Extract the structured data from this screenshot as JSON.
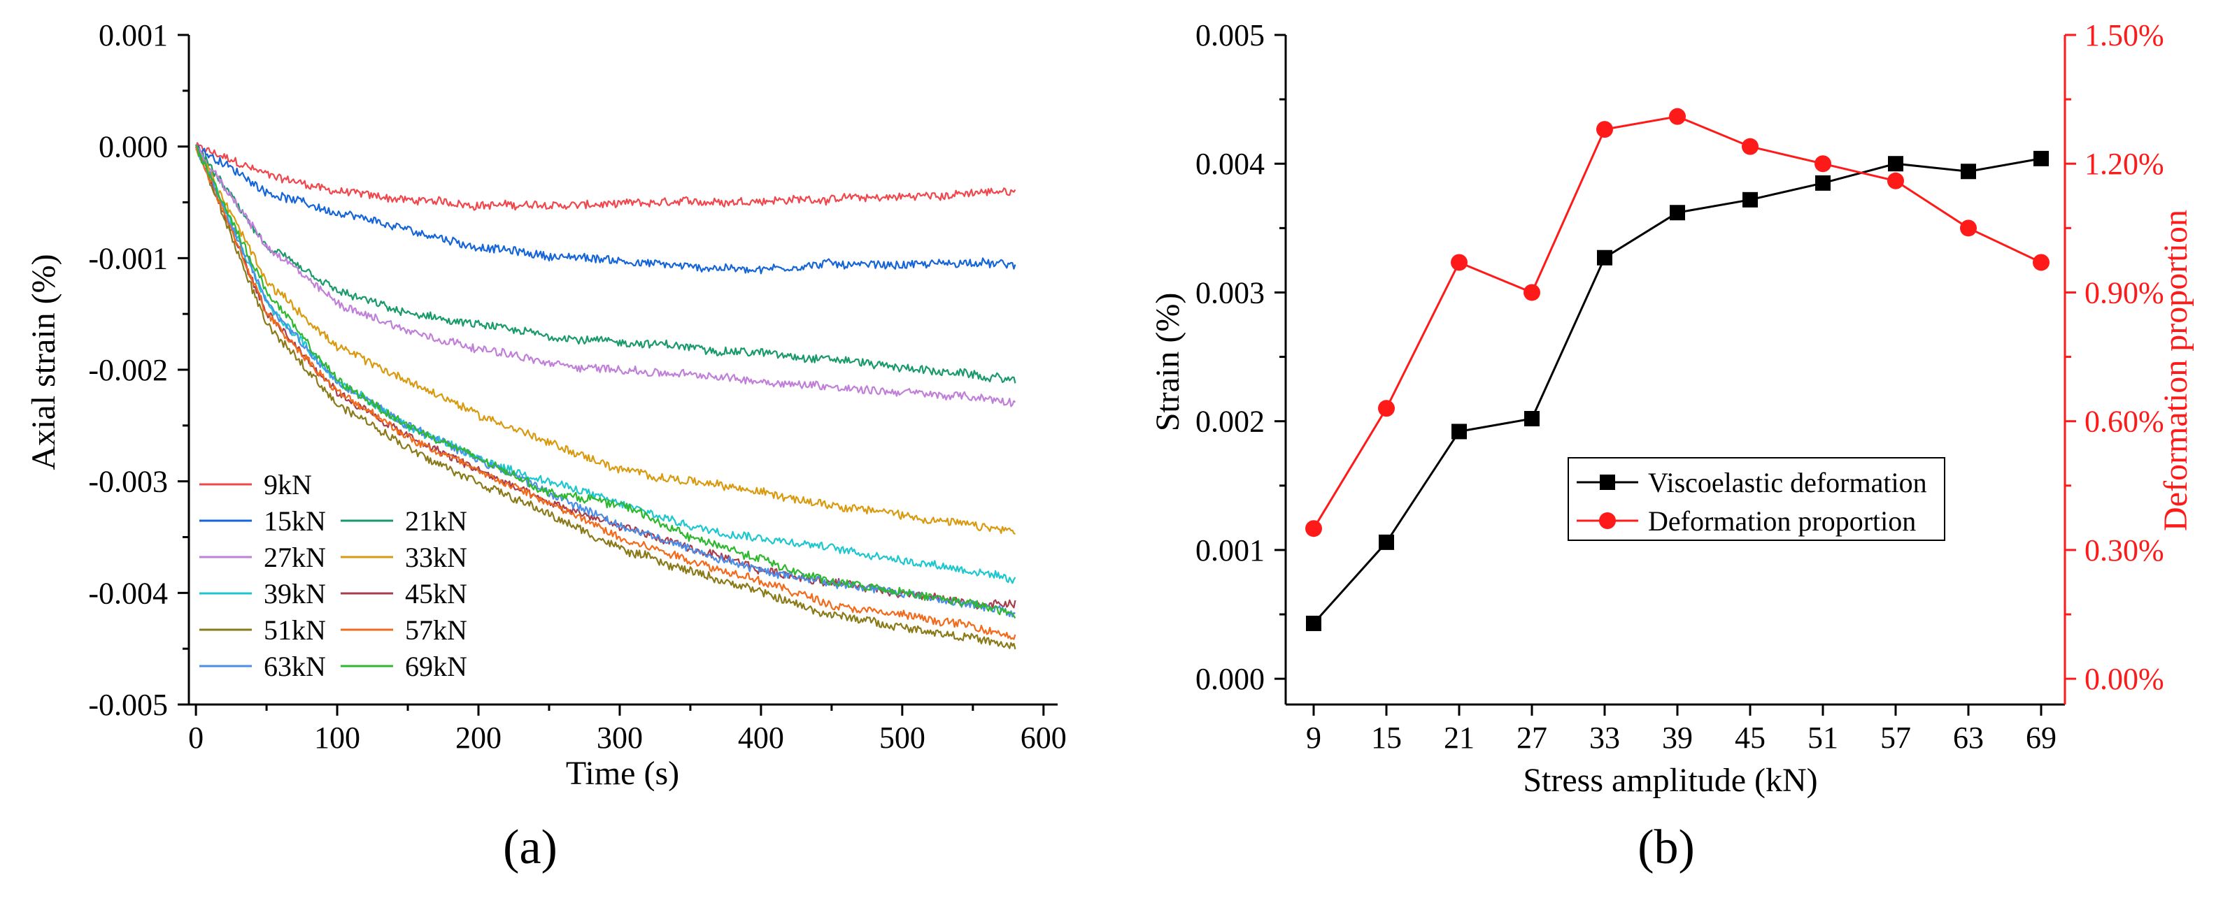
{
  "chart_data": [
    {
      "id": "a",
      "type": "line",
      "panel_label": "(a)",
      "xlabel": "Time (s)",
      "ylabel": "Axial strain (%)",
      "xlim": [
        -5,
        610
      ],
      "ylim": [
        -0.005,
        0.001
      ],
      "x_ticks": [
        0,
        100,
        200,
        300,
        400,
        500,
        600
      ],
      "x_tick_labels": [
        "0",
        "100",
        "200",
        "300",
        "400",
        "500",
        "600"
      ],
      "y_ticks": [
        0.001,
        0.0,
        -0.001,
        -0.002,
        -0.003,
        -0.004,
        -0.005
      ],
      "y_tick_labels": [
        "0.001",
        "0.000",
        "-0.001",
        "-0.002",
        "-0.003",
        "-0.004",
        "-0.005"
      ],
      "legend_position": "bottom-left",
      "x_range": [
        0,
        580
      ],
      "series": [
        {
          "name": "9kN",
          "color": "#f0474d",
          "x": [
            0,
            50,
            100,
            150,
            200,
            250,
            300,
            350,
            400,
            450,
            500,
            550,
            580
          ],
          "y": [
            0.0,
            -0.00025,
            -0.0004,
            -0.00048,
            -0.00052,
            -0.00053,
            -0.00052,
            -0.0005,
            -0.00048,
            -0.00047,
            -0.00045,
            -0.00042,
            -0.0004
          ]
        },
        {
          "name": "15kN",
          "color": "#1565d8",
          "x": [
            0,
            50,
            100,
            150,
            200,
            250,
            300,
            350,
            400,
            450,
            500,
            550,
            580
          ],
          "y": [
            0.0,
            -0.0004,
            -0.0006,
            -0.00075,
            -0.0009,
            -0.00098,
            -0.00102,
            -0.00108,
            -0.0011,
            -0.00105,
            -0.00106,
            -0.00104,
            -0.00107
          ]
        },
        {
          "name": "21kN",
          "color": "#1a9a6a",
          "x": [
            0,
            50,
            100,
            150,
            200,
            250,
            300,
            350,
            400,
            450,
            500,
            550,
            580
          ],
          "y": [
            0.0,
            -0.0009,
            -0.0013,
            -0.0015,
            -0.0016,
            -0.0017,
            -0.00175,
            -0.0018,
            -0.00185,
            -0.0019,
            -0.00198,
            -0.00205,
            -0.0021
          ]
        },
        {
          "name": "27kN",
          "color": "#c07fd8",
          "x": [
            0,
            50,
            100,
            150,
            200,
            250,
            300,
            350,
            400,
            450,
            500,
            550,
            580
          ],
          "y": [
            0.0,
            -0.0009,
            -0.0014,
            -0.00165,
            -0.0018,
            -0.00195,
            -0.002,
            -0.00205,
            -0.0021,
            -0.00215,
            -0.0022,
            -0.00225,
            -0.0023
          ]
        },
        {
          "name": "33kN",
          "color": "#d99a10",
          "x": [
            0,
            50,
            100,
            150,
            200,
            250,
            300,
            350,
            400,
            450,
            500,
            550,
            580
          ],
          "y": [
            0.0,
            -0.0012,
            -0.0018,
            -0.0021,
            -0.0024,
            -0.00265,
            -0.0029,
            -0.003,
            -0.0031,
            -0.0032,
            -0.0033,
            -0.0034,
            -0.00345
          ]
        },
        {
          "name": "39kN",
          "color": "#1ec7d0",
          "x": [
            0,
            50,
            100,
            150,
            200,
            250,
            300,
            350,
            400,
            450,
            500,
            550,
            580
          ],
          "y": [
            0.0,
            -0.0014,
            -0.0021,
            -0.0025,
            -0.0028,
            -0.003,
            -0.0032,
            -0.0034,
            -0.0035,
            -0.0036,
            -0.0037,
            -0.0038,
            -0.0039
          ]
        },
        {
          "name": "45kN",
          "color": "#a83c4c",
          "x": [
            0,
            50,
            100,
            150,
            200,
            250,
            300,
            350,
            400,
            450,
            500,
            550,
            580
          ],
          "y": [
            0.0,
            -0.0015,
            -0.0022,
            -0.0026,
            -0.0029,
            -0.0032,
            -0.0034,
            -0.0036,
            -0.0038,
            -0.0039,
            -0.004,
            -0.0041,
            -0.0041
          ]
        },
        {
          "name": "51kN",
          "color": "#8a7a1a",
          "x": [
            0,
            50,
            100,
            150,
            200,
            250,
            300,
            350,
            400,
            450,
            500,
            550,
            580
          ],
          "y": [
            0.0,
            -0.0016,
            -0.0023,
            -0.0027,
            -0.003,
            -0.0033,
            -0.0036,
            -0.0038,
            -0.004,
            -0.0042,
            -0.0043,
            -0.0044,
            -0.0045
          ]
        },
        {
          "name": "57kN",
          "color": "#f26a1c",
          "x": [
            0,
            50,
            100,
            150,
            200,
            250,
            300,
            350,
            400,
            450,
            500,
            550,
            580
          ],
          "y": [
            0.0,
            -0.0015,
            -0.0022,
            -0.0026,
            -0.0029,
            -0.0032,
            -0.0035,
            -0.0037,
            -0.0039,
            -0.0041,
            -0.0042,
            -0.0043,
            -0.0044
          ]
        },
        {
          "name": "63kN",
          "color": "#4a8ee8",
          "x": [
            0,
            50,
            100,
            150,
            200,
            250,
            300,
            350,
            400,
            450,
            500,
            550,
            580
          ],
          "y": [
            0.0,
            -0.0014,
            -0.0021,
            -0.0025,
            -0.0028,
            -0.0031,
            -0.0034,
            -0.0036,
            -0.0038,
            -0.0039,
            -0.004,
            -0.0041,
            -0.0042
          ]
        },
        {
          "name": "69kN",
          "color": "#2fb82f",
          "x": [
            0,
            50,
            100,
            150,
            200,
            250,
            300,
            350,
            400,
            450,
            500,
            550,
            580
          ],
          "y": [
            0.0,
            -0.0013,
            -0.0021,
            -0.0025,
            -0.0028,
            -0.0031,
            -0.0032,
            -0.0035,
            -0.0037,
            -0.0039,
            -0.004,
            -0.0041,
            -0.0042
          ]
        }
      ]
    },
    {
      "id": "b",
      "type": "line",
      "panel_label": "(b)",
      "xlabel": "Stress amplitude (kN)",
      "ylabel": "Strain (%)",
      "ylabel_right": "Deformation proportion",
      "categories": [
        "9",
        "15",
        "21",
        "27",
        "33",
        "39",
        "45",
        "51",
        "57",
        "63",
        "69"
      ],
      "ylim": [
        -0.0002,
        0.005
      ],
      "ylim_right": [
        -0.0006,
        0.015
      ],
      "y_ticks": [
        0.0,
        0.001,
        0.002,
        0.003,
        0.004,
        0.005
      ],
      "y_tick_labels": [
        "0.000",
        "0.001",
        "0.002",
        "0.003",
        "0.004",
        "0.005"
      ],
      "y_right_ticks": [
        0.0,
        0.003,
        0.006,
        0.009,
        0.012,
        0.015
      ],
      "y_right_tick_labels": [
        "0.00%",
        "0.30%",
        "0.60%",
        "0.90%",
        "1.20%",
        "1.50%"
      ],
      "legend_position": "center",
      "right_axis_color": "#ff1a1a",
      "series": [
        {
          "name": "Viscoelastic deformation",
          "axis": "left",
          "marker": "square",
          "color": "#000000",
          "values": [
            0.00043,
            0.00106,
            0.00192,
            0.00202,
            0.00327,
            0.00362,
            0.00372,
            0.00385,
            0.004,
            0.00394,
            0.00404
          ]
        },
        {
          "name": "Deformation proportion",
          "axis": "right",
          "marker": "circle",
          "color": "#ff1a1a",
          "values": [
            0.0035,
            0.0063,
            0.0097,
            0.009,
            0.0128,
            0.0131,
            0.0124,
            0.012,
            0.0116,
            0.0105,
            0.0097
          ]
        }
      ]
    }
  ]
}
